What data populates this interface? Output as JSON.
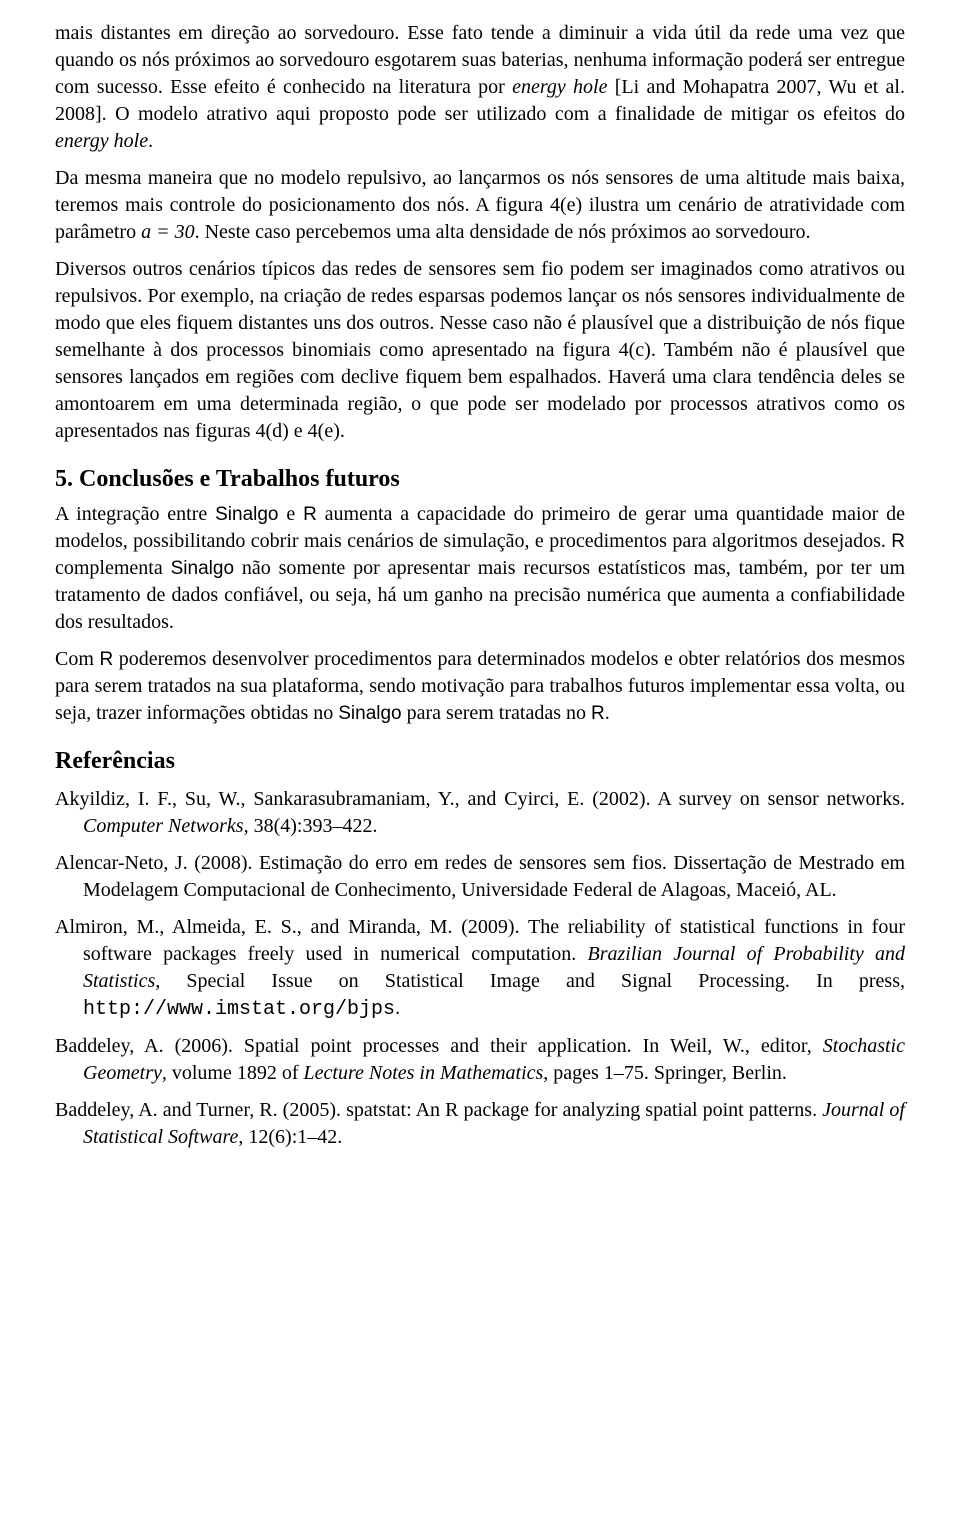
{
  "paragraphs": {
    "p1a": "mais distantes em direção ao sorvedouro. Esse fato tende a diminuir a vida útil da rede uma vez que quando os nós próximos ao sorvedouro esgotarem suas baterias, nenhuma informação poderá ser entregue com sucesso. Esse efeito é conhecido na literatura por ",
    "p1_eh": "energy hole",
    "p1b": " [Li and Mohapatra 2007, Wu et al. 2008]. O modelo atrativo aqui proposto pode ser utilizado com a finalidade de mitigar os efeitos do ",
    "p1_eh2": "energy hole",
    "p1c": ".",
    "p2a": "Da mesma maneira que no modelo repulsivo, ao lançarmos os nós sensores de uma altitude mais baixa, teremos mais controle do posicionamento dos nós. A figura 4(e) ilustra um cenário de atratividade com parâmetro ",
    "p2_math": "a = 30",
    "p2b": ". Neste caso percebemos uma alta densidade de nós próximos ao sorvedouro.",
    "p3": "Diversos outros cenários típicos das redes de sensores sem fio podem ser imaginados como atrativos ou repulsivos. Por exemplo, na criação de redes esparsas podemos lançar os nós sensores individualmente de modo que eles fiquem distantes uns dos outros. Nesse caso não é plausível que a distribuição de nós fique semelhante à dos processos binomiais como apresentado na figura 4(c). Também não é plausível que sensores lançados em regiões com declive fiquem bem espalhados. Haverá uma clara tendência deles se amontoarem em uma determinada região, o que pode ser modelado por processos atrativos como os apresentados nas figuras 4(d) e 4(e).",
    "section5": "5. Conclusões e Trabalhos futuros",
    "p4a": "A integração entre ",
    "p4_sinalgo": "Sinalgo",
    "p4b": " e ",
    "p4_r1": "R",
    "p4c": " aumenta a capacidade do primeiro de gerar uma quantidade maior de modelos, possibilitando cobrir mais cenários de simulação, e procedimentos para algoritmos desejados. ",
    "p4_r2": "R",
    "p4d": " complementa ",
    "p4_sinalgo2": "Sinalgo",
    "p4e": " não somente por apresentar mais recursos estatísticos mas, também, por ter um tratamento de dados confiável, ou seja, há um ganho na precisão numérica que aumenta a confiabilidade dos resultados.",
    "p5a": "Com ",
    "p5_r": "R",
    "p5b": " poderemos desenvolver procedimentos para determinados modelos e obter relatórios dos mesmos para serem tratados na sua plataforma, sendo motivação para trabalhos futuros implementar essa volta, ou seja, trazer informações obtidas no ",
    "p5_sinalgo": "Sinalgo",
    "p5c": " para serem tratadas no ",
    "p5_r2": "R",
    "p5d": ".",
    "refs_heading": "Referências"
  },
  "references": {
    "r1a": "Akyildiz, I. F., Su, W., Sankarasubramaniam, Y., and Cyirci, E. (2002).  A survey on sensor networks. ",
    "r1i": "Computer Networks",
    "r1b": ", 38(4):393–422.",
    "r2": "Alencar-Neto, J. (2008).  Estimação do erro em redes de sensores sem fios.  Dissertação de Mestrado em Modelagem Computacional de Conhecimento, Universidade Federal de Alagoas, Maceió, AL.",
    "r3a": "Almiron, M., Almeida, E. S., and Miranda, M. (2009). The reliability of statistical functions in four software packages freely used in numerical computation. ",
    "r3i": "Brazilian Journal of Probability and Statistics",
    "r3b": ", Special Issue on Statistical Image and Signal Processing. In press, ",
    "r3url": "http://www.imstat.org/bjps",
    "r3c": ".",
    "r4a": "Baddeley, A. (2006).  Spatial point processes and their application.  In Weil, W., editor, ",
    "r4i1": "Stochastic Geometry",
    "r4b": ", volume 1892 of ",
    "r4i2": "Lecture Notes in Mathematics",
    "r4c": ", pages 1–75. Springer, Berlin.",
    "r5a": "Baddeley, A. and Turner, R. (2005).  spatstat: An R package for analyzing spatial point patterns. ",
    "r5i": "Journal of Statistical Software",
    "r5b": ", 12(6):1–42."
  }
}
